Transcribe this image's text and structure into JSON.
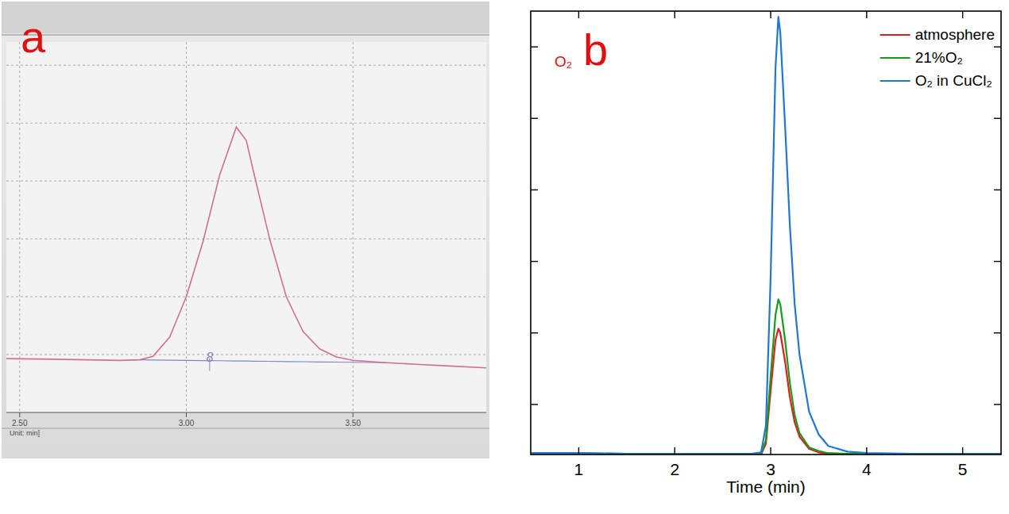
{
  "chart_data": [
    {
      "type": "line",
      "panel": "a",
      "x_label": "Unit: min]",
      "x": [
        2.46,
        2.6,
        2.7,
        2.8,
        2.86,
        2.9,
        2.95,
        3.0,
        3.05,
        3.1,
        3.15,
        3.18,
        3.2,
        3.25,
        3.3,
        3.35,
        3.4,
        3.45,
        3.5,
        3.6,
        3.7,
        3.8,
        3.9
      ],
      "series": [
        {
          "color": "#d0708a",
          "values": [
            0.93,
            0.92,
            0.91,
            0.9,
            0.91,
            0.97,
            1.3,
            2.0,
            2.95,
            4.1,
            4.93,
            4.7,
            4.2,
            3.0,
            2.0,
            1.4,
            1.1,
            0.96,
            0.9,
            0.86,
            0.83,
            0.8,
            0.77
          ]
        },
        {
          "color": "#7a86c8",
          "values": [
            null,
            null,
            null,
            null,
            0.91,
            0.907,
            0.904,
            0.9,
            0.897,
            0.894,
            0.89,
            0.888,
            0.887,
            0.884,
            0.88,
            0.877,
            0.873,
            0.87,
            0.867,
            0.86,
            null,
            null,
            null
          ]
        }
      ],
      "xlim": [
        2.46,
        3.9
      ],
      "xticks": [
        {
          "value": 2.5,
          "label": "2.50"
        },
        {
          "value": 3,
          "label": "3.00"
        },
        {
          "value": 3.5,
          "label": "3.50"
        }
      ],
      "ylim": [
        0,
        6.4
      ],
      "yticks": [
        1,
        2,
        3,
        4,
        5,
        6
      ],
      "grid": true,
      "tick_labels": "x",
      "annotations": [
        {
          "x": 3.07,
          "text": "8"
        }
      ]
    },
    {
      "type": "line",
      "panel": "b",
      "x_label": "Time (min)",
      "annotations": [
        {
          "text": "O₂"
        }
      ],
      "x": [
        0.5,
        1.0,
        1.5,
        2.0,
        2.5,
        2.8,
        2.9,
        2.95,
        3.0,
        3.05,
        3.08,
        3.1,
        3.15,
        3.2,
        3.25,
        3.3,
        3.4,
        3.5,
        3.6,
        3.8,
        4.0,
        4.5,
        5.0,
        5.4
      ],
      "series": [
        {
          "name": "atmosphere",
          "color": "#e41a1c",
          "values": [
            0,
            0,
            0,
            0.01,
            0,
            0,
            0,
            0.15,
            0.9,
            1.6,
            1.76,
            1.7,
            1.3,
            0.8,
            0.45,
            0.25,
            0.08,
            0.03,
            0.01,
            0,
            0,
            0,
            0,
            0
          ]
        },
        {
          "name": "21%O₂",
          "color": "#1a9a1a",
          "values": [
            0.02,
            0.02,
            0.01,
            0.01,
            0.01,
            0.01,
            0.01,
            0.2,
            1.1,
            1.95,
            2.17,
            2.1,
            1.6,
            1.0,
            0.55,
            0.3,
            0.1,
            0.05,
            0.02,
            0.01,
            0.01,
            0.01,
            0.01,
            0.01
          ]
        },
        {
          "name": "O₂ in CuCl₂",
          "color": "#1f77d4",
          "values": [
            0.02,
            0.02,
            0.01,
            0.01,
            0.01,
            0.01,
            0.03,
            0.4,
            2.5,
            5.4,
            6.12,
            5.9,
            4.6,
            3.2,
            2.1,
            1.4,
            0.6,
            0.28,
            0.12,
            0.04,
            0.02,
            0.01,
            0.01,
            0.01
          ]
        }
      ],
      "xlim": [
        0.5,
        5.4
      ],
      "xticks": [
        1,
        2,
        3,
        4,
        5
      ],
      "ylim": [
        0,
        6.2
      ],
      "yticks": [
        0.7,
        1.7,
        2.7,
        3.7,
        4.7,
        5.7
      ],
      "tick_labels": "x",
      "legend": "upper right"
    }
  ]
}
